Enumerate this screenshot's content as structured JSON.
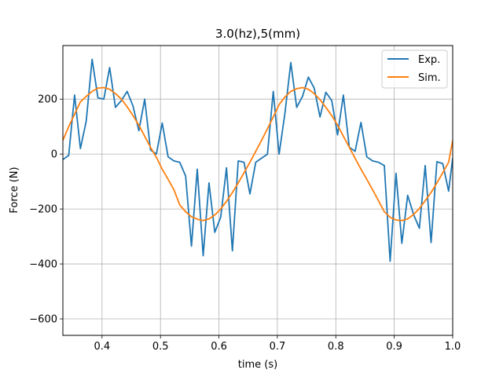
{
  "chart_data": {
    "type": "line",
    "title": "3.0(hz),5(mm)",
    "xlabel": "time (s)",
    "ylabel": "Force (N)",
    "xlim": [
      0.333,
      1.0
    ],
    "ylim": [
      -660,
      395
    ],
    "xticks": [
      0.4,
      0.5,
      0.6,
      0.7,
      0.8,
      0.9,
      1.0
    ],
    "xtick_labels": [
      "0.4",
      "0.5",
      "0.6",
      "0.7",
      "0.8",
      "0.9",
      "1.0"
    ],
    "yticks": [
      -600,
      -400,
      -200,
      0,
      200
    ],
    "ytick_labels": [
      "−600",
      "−400",
      "−200",
      "0",
      "200"
    ],
    "grid": true,
    "legend_position": "top-right",
    "series": [
      {
        "name": "Exp.",
        "color": "#1f77b4",
        "x": [
          0.333,
          0.343,
          0.353,
          0.363,
          0.373,
          0.383,
          0.393,
          0.403,
          0.413,
          0.423,
          0.433,
          0.443,
          0.453,
          0.463,
          0.473,
          0.483,
          0.493,
          0.503,
          0.513,
          0.523,
          0.533,
          0.543,
          0.553,
          0.563,
          0.573,
          0.583,
          0.593,
          0.603,
          0.613,
          0.623,
          0.633,
          0.643,
          0.653,
          0.663,
          0.673,
          0.683,
          0.693,
          0.703,
          0.713,
          0.723,
          0.733,
          0.743,
          0.753,
          0.763,
          0.773,
          0.783,
          0.793,
          0.803,
          0.813,
          0.823,
          0.833,
          0.843,
          0.853,
          0.863,
          0.873,
          0.883,
          0.893,
          0.903,
          0.913,
          0.923,
          0.933,
          0.943,
          0.953,
          0.963,
          0.973,
          0.983,
          0.993,
          1.0
        ],
        "y": [
          -20,
          -5,
          215,
          20,
          120,
          345,
          205,
          200,
          315,
          170,
          195,
          228,
          175,
          85,
          200,
          15,
          0,
          113,
          -10,
          -25,
          -30,
          -80,
          -335,
          -55,
          -370,
          -105,
          -285,
          -230,
          -50,
          -352,
          -25,
          -30,
          -145,
          -30,
          -15,
          0,
          228,
          0,
          150,
          333,
          170,
          210,
          280,
          240,
          135,
          225,
          195,
          70,
          215,
          25,
          10,
          115,
          -10,
          -25,
          -30,
          -42,
          -390,
          -70,
          -325,
          -150,
          -220,
          -270,
          -42,
          -322,
          -28,
          -35,
          -135,
          -15
        ]
      },
      {
        "name": "Sim.",
        "color": "#ff7f0e",
        "x": [
          0.333,
          0.343,
          0.353,
          0.363,
          0.373,
          0.383,
          0.393,
          0.403,
          0.413,
          0.423,
          0.433,
          0.443,
          0.453,
          0.463,
          0.473,
          0.483,
          0.493,
          0.503,
          0.513,
          0.523,
          0.533,
          0.543,
          0.553,
          0.563,
          0.573,
          0.583,
          0.593,
          0.603,
          0.613,
          0.623,
          0.633,
          0.643,
          0.653,
          0.663,
          0.673,
          0.683,
          0.693,
          0.703,
          0.713,
          0.723,
          0.733,
          0.743,
          0.753,
          0.763,
          0.773,
          0.783,
          0.793,
          0.803,
          0.813,
          0.823,
          0.833,
          0.843,
          0.853,
          0.863,
          0.873,
          0.883,
          0.893,
          0.903,
          0.913,
          0.923,
          0.933,
          0.943,
          0.953,
          0.963,
          0.973,
          0.983,
          0.993,
          1.0
        ],
        "y": [
          50,
          100,
          145,
          190,
          210,
          228,
          240,
          242,
          236,
          220,
          200,
          172,
          140,
          105,
          65,
          25,
          -12,
          -55,
          -92,
          -130,
          -185,
          -210,
          -228,
          -237,
          -242,
          -236,
          -222,
          -200,
          -172,
          -140,
          -105,
          -68,
          -30,
          10,
          50,
          92,
          135,
          180,
          208,
          228,
          238,
          242,
          236,
          220,
          198,
          170,
          140,
          105,
          65,
          25,
          -15,
          -55,
          -92,
          -130,
          -170,
          -210,
          -230,
          -240,
          -242,
          -236,
          -220,
          -198,
          -170,
          -140,
          -105,
          -68,
          -30,
          50
        ]
      }
    ]
  }
}
